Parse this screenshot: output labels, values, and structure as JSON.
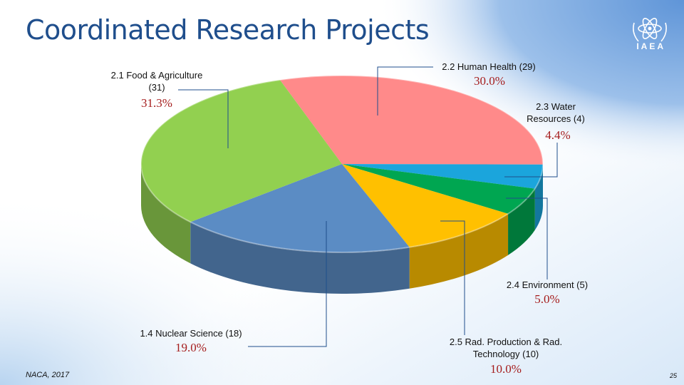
{
  "header": {
    "title": "Coordinated Research Projects",
    "logo_text": "IAEA"
  },
  "colors": {
    "food": "#92d050",
    "human_health": "#ff8a8a",
    "water": "#1ba5dc",
    "environment": "#00a651",
    "rad_production": "#ffc000",
    "nuclear_science": "#5b8cc4",
    "pct_text": "#a51d1d"
  },
  "chart_data": {
    "type": "pie",
    "title": "",
    "slices": [
      {
        "label": "2.2 Human Health (29)",
        "value": 30.0,
        "pct_label": "30.0%",
        "color": "#ff8a8a"
      },
      {
        "label": "2.3 Water Resources (4)",
        "value": 4.4,
        "pct_label": "4.4%",
        "color": "#1ba5dc"
      },
      {
        "label": "2.4 Environment (5)",
        "value": 5.0,
        "pct_label": "5.0%",
        "color": "#00a651"
      },
      {
        "label": "2.5 Rad. Production & Rad. Technology (10)",
        "value": 10.0,
        "pct_label": "10.0%",
        "color": "#ffc000"
      },
      {
        "label": "1.4 Nuclear Science (18)",
        "value": 19.0,
        "pct_label": "19.0%",
        "color": "#5b8cc4"
      },
      {
        "label": "2.1 Food & Agriculture (31)",
        "value": 31.3,
        "pct_label": "31.3%",
        "color": "#92d050"
      }
    ]
  },
  "labels": {
    "food_line1": "2.1 Food & Agriculture",
    "food_line2": "(31)",
    "human_health": "2.2 Human Health (29)",
    "water_line1": "2.3 Water",
    "water_line2": "Resources (4)",
    "environment": "2.4 Environment (5)",
    "rad_line1": "2.5 Rad. Production & Rad.",
    "rad_line2": "Technology (10)",
    "nuclear": "1.4 Nuclear Science (18)"
  },
  "footer": {
    "text": "NACA, 2017",
    "page": "25"
  }
}
